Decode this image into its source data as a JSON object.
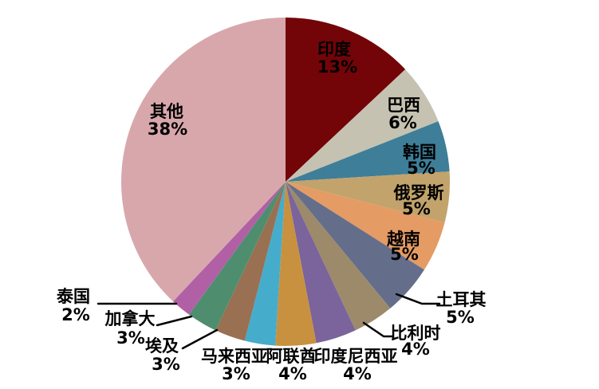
{
  "page": {
    "background_color": "#FFFFFF"
  },
  "chart_data": {
    "type": "pie",
    "title": "",
    "legend": "none",
    "unit": "%",
    "total": 100,
    "start_angle_deg": 0,
    "direction": "clockwise",
    "slices": [
      {
        "id": "india",
        "label": "印度",
        "value": 13,
        "pct_text": "13%",
        "color": "#730408",
        "label_placement": "inside",
        "label_color": "#FFFFFF"
      },
      {
        "id": "brazil",
        "label": "巴西",
        "value": 6,
        "pct_text": "6%",
        "color": "#C5C2B1",
        "label_placement": "inside",
        "label_color": "#000000"
      },
      {
        "id": "korea",
        "label": "韩国",
        "value": 5,
        "pct_text": "5%",
        "color": "#3E7E99",
        "label_placement": "inside",
        "label_color": "#000000"
      },
      {
        "id": "russia",
        "label": "俄罗斯",
        "value": 5,
        "pct_text": "5%",
        "color": "#C2A36B",
        "label_placement": "inside",
        "label_color": "#000000"
      },
      {
        "id": "vietnam",
        "label": "越南",
        "value": 5,
        "pct_text": "5%",
        "color": "#E59B64",
        "label_placement": "inside",
        "label_color": "#000000"
      },
      {
        "id": "turkey",
        "label": "土耳其",
        "value": 5,
        "pct_text": "5%",
        "color": "#646E8A",
        "label_placement": "outside",
        "label_color": "#000000"
      },
      {
        "id": "belgium",
        "label": "比利时",
        "value": 4,
        "pct_text": "4%",
        "color": "#9C8A6A",
        "label_placement": "outside",
        "label_color": "#000000"
      },
      {
        "id": "indonesia",
        "label": "印度尼西亚",
        "value": 4,
        "pct_text": "4%",
        "color": "#7A649B",
        "label_placement": "outside",
        "label_color": "#000000"
      },
      {
        "id": "uae",
        "label": "阿联酋",
        "value": 4,
        "pct_text": "4%",
        "color": "#C8913F",
        "label_placement": "outside",
        "label_color": "#000000"
      },
      {
        "id": "malaysia",
        "label": "马来西亚",
        "value": 3,
        "pct_text": "3%",
        "color": "#45ACCC",
        "label_placement": "outside",
        "label_color": "#000000"
      },
      {
        "id": "egypt",
        "label": "埃及",
        "value": 3,
        "pct_text": "3%",
        "color": "#997052",
        "label_placement": "outside",
        "label_color": "#000000"
      },
      {
        "id": "canada",
        "label": "加拿大",
        "value": 3,
        "pct_text": "3%",
        "color": "#4E8E6F",
        "label_placement": "outside",
        "label_color": "#000000"
      },
      {
        "id": "thailand",
        "label": "泰国",
        "value": 2,
        "pct_text": "2%",
        "color": "#B160A5",
        "label_placement": "outside",
        "label_color": "#000000"
      },
      {
        "id": "other",
        "label": "其他",
        "value": 38,
        "pct_text": "38%",
        "color": "#D8A7AC",
        "label_placement": "inside",
        "label_color": "#000000"
      }
    ]
  }
}
